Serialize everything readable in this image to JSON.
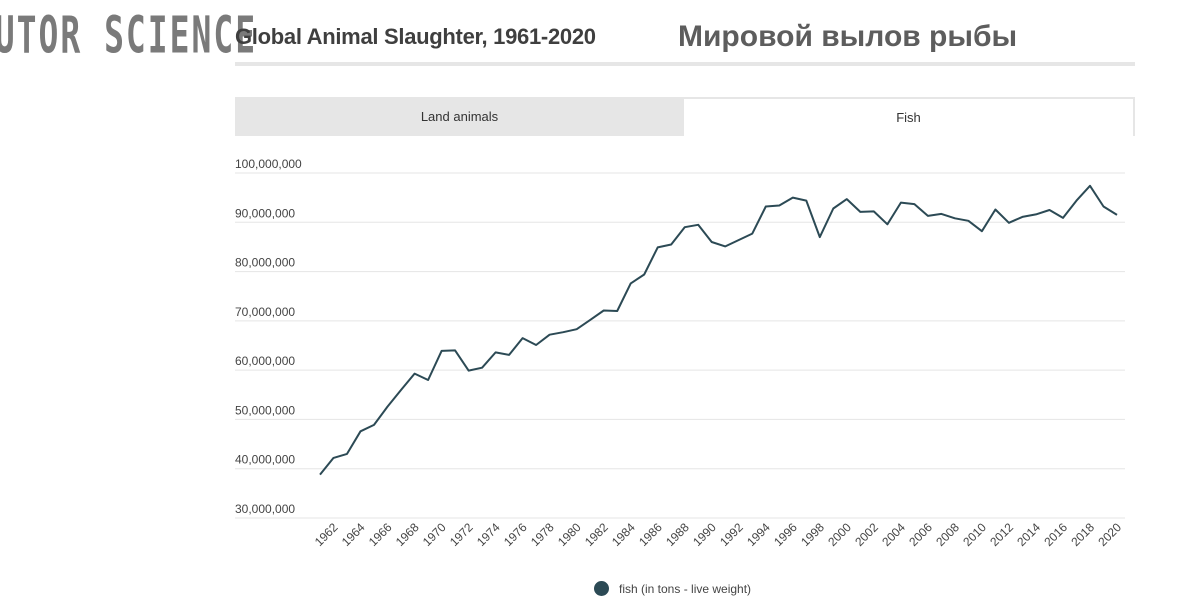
{
  "brand": {
    "logo_text": "AUTOR SCIENCE"
  },
  "header": {
    "title": "Global Animal Slaughter, 1961-2020",
    "subtitle_ru": "Мировой вылов рыбы"
  },
  "tabs": [
    {
      "label": "Land animals",
      "active": false
    },
    {
      "label": "Fish",
      "active": true
    }
  ],
  "colors": {
    "line": "#2c4a55",
    "grid": "#e5e5e5",
    "tab_inactive": "#e6e6e6"
  },
  "chart_data": {
    "type": "line",
    "title": "Global Animal Slaughter, 1961-2020",
    "xlabel": "",
    "ylabel": "",
    "ylim": [
      30000000,
      100000000
    ],
    "xlim": [
      1961,
      2020
    ],
    "yticks": [
      "100,000,000",
      "90,000,000",
      "80,000,000",
      "70,000,000",
      "60,000,000",
      "50,000,000",
      "40,000,000",
      "30,000,000"
    ],
    "ytick_values": [
      100000000,
      90000000,
      80000000,
      70000000,
      60000000,
      50000000,
      40000000,
      30000000
    ],
    "xticks": [
      "1962",
      "1964",
      "1966",
      "1968",
      "1970",
      "1972",
      "1974",
      "1976",
      "1978",
      "1980",
      "1982",
      "1984",
      "1986",
      "1988",
      "1990",
      "1992",
      "1994",
      "1996",
      "1998",
      "2000",
      "2002",
      "2004",
      "2006",
      "2008",
      "2010",
      "2012",
      "2014",
      "2016",
      "2018",
      "2020"
    ],
    "grid": true,
    "legend_position": "bottom-center",
    "series": [
      {
        "name": "fish (in tons - live weight)",
        "x": [
          1961,
          1962,
          1963,
          1964,
          1965,
          1966,
          1967,
          1968,
          1969,
          1970,
          1971,
          1972,
          1973,
          1974,
          1975,
          1976,
          1977,
          1978,
          1979,
          1980,
          1981,
          1982,
          1983,
          1984,
          1985,
          1986,
          1987,
          1988,
          1989,
          1990,
          1991,
          1992,
          1993,
          1994,
          1995,
          1996,
          1997,
          1998,
          1999,
          2000,
          2001,
          2002,
          2003,
          2004,
          2005,
          2006,
          2007,
          2008,
          2009,
          2010,
          2011,
          2012,
          2013,
          2014,
          2015,
          2016,
          2017,
          2018,
          2019,
          2020
        ],
        "values": [
          38800000,
          42200000,
          43000000,
          47600000,
          48900000,
          52600000,
          56000000,
          59300000,
          58000000,
          63900000,
          64000000,
          59900000,
          60500000,
          63600000,
          63100000,
          66500000,
          65100000,
          67200000,
          67700000,
          68300000,
          70200000,
          72100000,
          72000000,
          77600000,
          79400000,
          84900000,
          85500000,
          89000000,
          89500000,
          86000000,
          85100000,
          86400000,
          87700000,
          93200000,
          93400000,
          95000000,
          94400000,
          87000000,
          92800000,
          94700000,
          92100000,
          92200000,
          89600000,
          94000000,
          93700000,
          91300000,
          91700000,
          90800000,
          90300000,
          88200000,
          92600000,
          89900000,
          91100000,
          91600000,
          92500000,
          90900000,
          94400000,
          97400000,
          93200000,
          91500000
        ]
      }
    ]
  }
}
